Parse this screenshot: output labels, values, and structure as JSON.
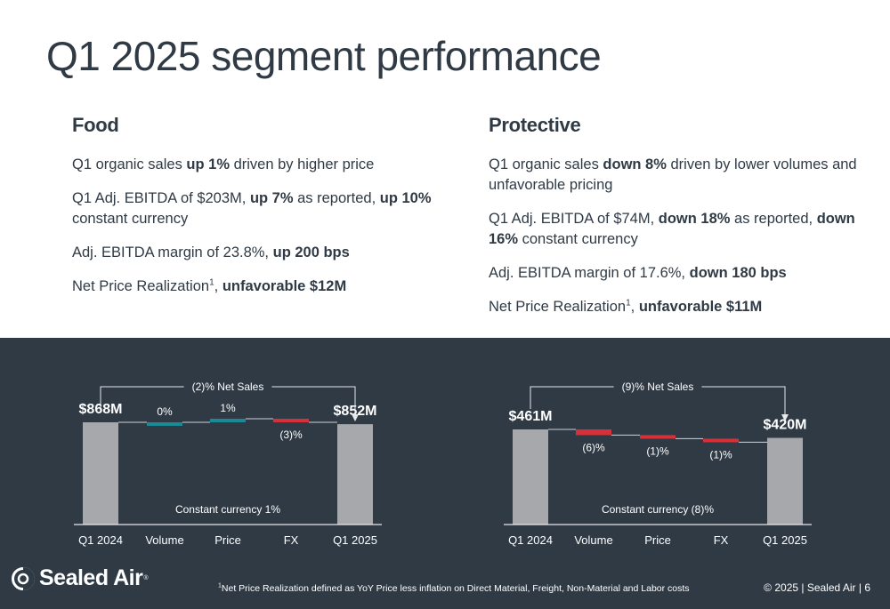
{
  "title": "Q1 2025 segment performance",
  "food": {
    "heading": "Food",
    "b1_pre": "Q1 organic sales ",
    "b1_bold": "up 1%",
    "b1_post": " driven by higher price",
    "b2_pre": "Q1 Adj. EBITDA of $203M, ",
    "b2_bold1": "up 7%",
    "b2_mid": " as reported, ",
    "b2_bold2": "up 10%",
    "b2_post": " constant currency",
    "b3_pre": "Adj. EBITDA margin of 23.8%, ",
    "b3_bold": "up 200 bps",
    "b4_pre": "Net Price Realization",
    "b4_sup": "1",
    "b4_mid": ", ",
    "b4_bold": "unfavorable $12M"
  },
  "protective": {
    "heading": "Protective",
    "b1_pre": "Q1 organic sales ",
    "b1_bold": "down 8%",
    "b1_post": " driven by lower volumes and unfavorable pricing",
    "b2_pre": "Q1 Adj. EBITDA of $74M, ",
    "b2_bold1": "down 18%",
    "b2_mid": " as reported, ",
    "b2_bold2": "down 16%",
    "b2_post": " constant currency",
    "b3_pre": "Adj. EBITDA margin of 17.6%, ",
    "b3_bold": "down 180 bps",
    "b4_pre": "Net Price Realization",
    "b4_sup": "1",
    "b4_mid": ", ",
    "b4_bold": "unfavorable $11M"
  },
  "chart_data": [
    {
      "type": "bar",
      "subtype": "waterfall",
      "categories": [
        "Q1 2024",
        "Volume",
        "Price",
        "FX",
        "Q1 2025"
      ],
      "values": [
        868,
        0,
        1,
        -3,
        852
      ],
      "units": [
        "$M",
        "%",
        "%",
        "%",
        "$M"
      ],
      "labels": [
        "$868M",
        "0%",
        "1%",
        "(3)%",
        "$852M"
      ],
      "bracket_label": "(2)% Net Sales",
      "note": "Constant currency 1%",
      "colors": [
        "#a6a8ab",
        "#1a8a96",
        "#1a8a96",
        "#d6313a",
        "#a6a8ab"
      ]
    },
    {
      "type": "bar",
      "subtype": "waterfall",
      "categories": [
        "Q1 2024",
        "Volume",
        "Price",
        "FX",
        "Q1 2025"
      ],
      "values": [
        461,
        -6,
        -1,
        -1,
        420
      ],
      "units": [
        "$M",
        "%",
        "%",
        "%",
        "$M"
      ],
      "labels": [
        "$461M",
        "(6)%",
        "(1)%",
        "(1)%",
        "$420M"
      ],
      "bracket_label": "(9)% Net Sales",
      "note": "Constant currency (8)%",
      "colors": [
        "#a6a8ab",
        "#d6313a",
        "#d6313a",
        "#d6313a",
        "#a6a8ab"
      ]
    }
  ],
  "logo": {
    "text": "Sealed Air",
    "reg": "®"
  },
  "footnote": {
    "sup": "1",
    "text": "Net Price Realization defined as YoY Price less inflation on Direct Material, Freight, Non-Material and Labor costs"
  },
  "footer": "© 2025  |  Sealed Air  |  6"
}
